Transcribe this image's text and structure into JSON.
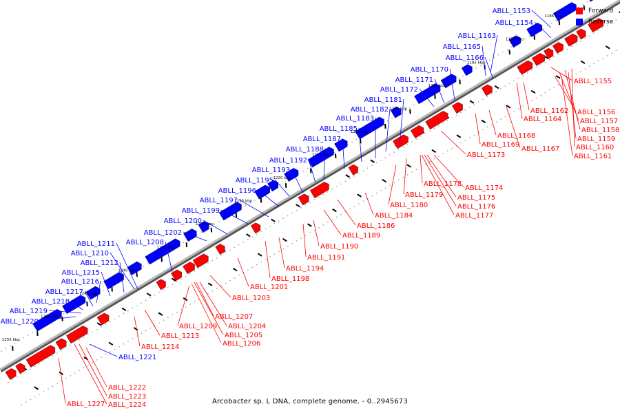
{
  "caption": "Arcobacter sp. L DNA, complete genome. - 0..2945673",
  "legend": [
    {
      "label": "Forward",
      "color": "#ff0000"
    },
    {
      "label": "Reverse",
      "color": "#0000ff"
    }
  ],
  "colors": {
    "forward": "#ff0000",
    "reverse": "#0000ff",
    "axis": "#999999",
    "tick": "#000000"
  },
  "kbp_labels": [
    "1185 kbp",
    "1190 kbp",
    "1195 kbp",
    "1200 kbp",
    "1205 kbp",
    "1210 kbp",
    "1215 kbp",
    "1220 kbp",
    "1225 kbp",
    "1230 kbp",
    "1235 kbp",
    "1240 kbp",
    "1245 kbp",
    "1250 kbp",
    "1255 kbp"
  ],
  "reverse_genes": [
    "ABLL_1153",
    "ABLL_1154",
    "ABLL_1163",
    "ABLL_1165",
    "ABLL_1166",
    "ABLL_1170",
    "ABLL_1171",
    "ABLL_1172",
    "ABLL_1181",
    "ABLL_1182",
    "ABLL_1183",
    "ABLL_1185",
    "ABLL_1187",
    "ABLL_1188",
    "ABLL_1192",
    "ABLL_1193",
    "ABLL_1195",
    "ABLL_1196",
    "ABLL_1197",
    "ABLL_1199",
    "ABLL_1200",
    "ABLL_1202",
    "ABLL_1208",
    "ABLL_1211",
    "ABLL_1210",
    "ABLL_1212",
    "ABLL_1215",
    "ABLL_1216",
    "ABLL_1217",
    "ABLL_1218",
    "ABLL_1219",
    "ABLL_1220",
    "ABLL_1221"
  ],
  "forward_genes": [
    "ABLL_1155",
    "ABLL_1156",
    "ABLL_1162",
    "ABLL_1157",
    "ABLL_1164",
    "ABLL_1158",
    "ABLL_1159",
    "ABLL_1168",
    "ABLL_1160",
    "ABLL_1169",
    "ABLL_1167",
    "ABLL_1161",
    "ABLL_1173",
    "ABLL_1174",
    "ABLL_1178",
    "ABLL_1175",
    "ABLL_1179",
    "ABLL_1176",
    "ABLL_1180",
    "ABLL_1177",
    "ABLL_1184",
    "ABLL_1186",
    "ABLL_1189",
    "ABLL_1190",
    "ABLL_1191",
    "ABLL_1194",
    "ABLL_1198",
    "ABLL_1201",
    "ABLL_1203",
    "ABLL_1207",
    "ABLL_1204",
    "ABLL_1209",
    "ABLL_1205",
    "ABLL_1213",
    "ABLL_1206",
    "ABLL_1214",
    "ABLL_1222",
    "ABLL_1223",
    "ABLL_1224",
    "ABLL_1227"
  ]
}
